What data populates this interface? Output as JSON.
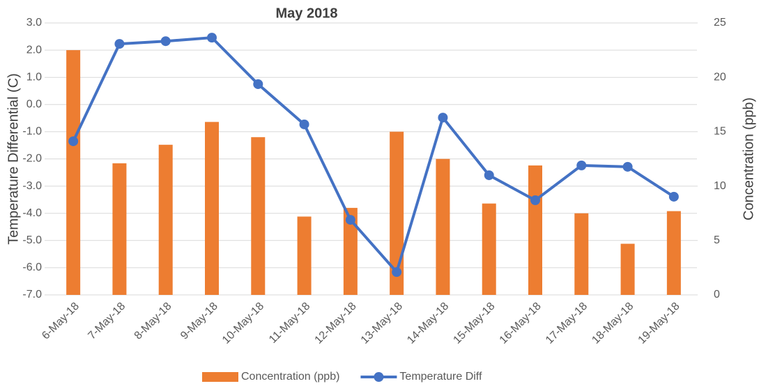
{
  "chart_data": {
    "type": "bar",
    "title": "May 2018",
    "categories": [
      "6-May-18",
      "7-May-18",
      "8-May-18",
      "9-May-18",
      "10-May-18",
      "11-May-18",
      "12-May-18",
      "13-May-18",
      "14-May-18",
      "15-May-18",
      "16-May-18",
      "17-May-18",
      "18-May-18",
      "19-May-18"
    ],
    "series": [
      {
        "name": "Concentration (ppb)",
        "type": "bar",
        "axis": "y2",
        "color": "#ed7d31",
        "values": [
          22.5,
          12.1,
          13.8,
          15.9,
          14.5,
          7.2,
          8.0,
          15.0,
          12.5,
          8.4,
          11.9,
          7.5,
          4.7,
          7.7
        ]
      },
      {
        "name": "Temperature Diff",
        "type": "line",
        "color": "#4472c4",
        "values": [
          -1.35,
          2.23,
          2.33,
          2.46,
          0.75,
          -0.73,
          -4.24,
          -6.16,
          -0.48,
          -2.6,
          -3.52,
          -2.24,
          -2.29,
          -3.39
        ]
      }
    ],
    "y_label": "Temperature Differential (C)",
    "y2_label": "Concentration (ppb)",
    "ylim": [
      -7,
      3
    ],
    "yticks": [
      {
        "value": 3,
        "label": "3.0"
      },
      {
        "value": 2,
        "label": "2.0"
      },
      {
        "value": 1,
        "label": "1.0"
      },
      {
        "value": 0,
        "label": "0.0"
      },
      {
        "value": -1,
        "label": "-1.0"
      },
      {
        "value": -2,
        "label": "-2.0"
      },
      {
        "value": -3,
        "label": "-3.0"
      },
      {
        "value": -4,
        "label": "-4.0"
      },
      {
        "value": -5,
        "label": "-5.0"
      },
      {
        "value": -6,
        "label": "-6.0"
      },
      {
        "value": -7,
        "label": "-7.0"
      }
    ],
    "y2lim": [
      0,
      25
    ],
    "y2ticks": [
      0,
      5,
      10,
      15,
      20,
      25
    ],
    "grid": true,
    "legend": "bottom"
  }
}
